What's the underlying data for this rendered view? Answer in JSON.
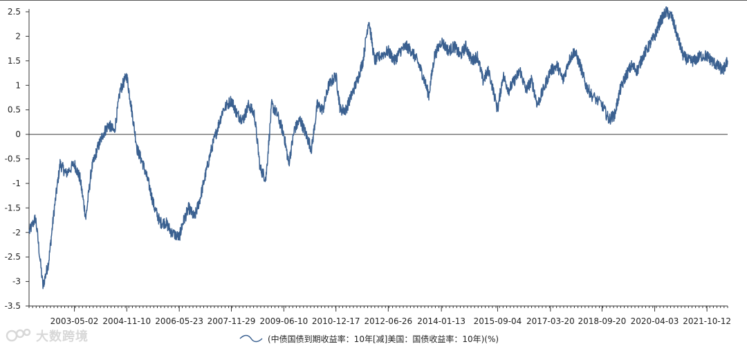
{
  "chart_data": {
    "type": "line",
    "title": "",
    "xlabel": "",
    "ylabel": "",
    "ylim": [
      -3.5,
      2.6
    ],
    "y_ticks": [
      "2.5",
      "2",
      "1.5",
      "1",
      "0.5",
      "0",
      "-0.5",
      "-1",
      "-1.5",
      "-2",
      "-2.5",
      "-3",
      "-3.5"
    ],
    "y_tick_values": [
      2.5,
      2,
      1.5,
      1,
      0.5,
      0,
      -0.5,
      -1,
      -1.5,
      -2,
      -2.5,
      -3,
      -3.5
    ],
    "x_range": [
      "2002-01-04",
      "2022-05-20"
    ],
    "x_tick_labels": [
      "2003-05-02",
      "2004-11-10",
      "2006-05-23",
      "2007-11-29",
      "2009-06-10",
      "2010-12-17",
      "2012-06-26",
      "2014-01-13",
      "2015-09-04",
      "2017-03-20",
      "2018-09-20",
      "2020-04-03",
      "2021-10-12"
    ],
    "zero_line": true,
    "grid": false,
    "legend_position": "bottom-center",
    "series": [
      {
        "name": "(中债国债到期收益率：10年[减]美国：国债收益率：10年)(%)",
        "color": "#3a6090",
        "x": [
          "2002-01-04",
          "2002-03-15",
          "2002-06-01",
          "2002-08-01",
          "2002-10-01",
          "2002-12-01",
          "2003-02-01",
          "2003-05-02",
          "2003-07-01",
          "2003-09-01",
          "2003-11-01",
          "2004-01-01",
          "2004-03-01",
          "2004-05-01",
          "2004-07-01",
          "2004-09-01",
          "2004-11-10",
          "2005-01-01",
          "2005-03-01",
          "2005-05-01",
          "2005-07-01",
          "2005-09-01",
          "2005-11-01",
          "2006-01-01",
          "2006-03-01",
          "2006-05-23",
          "2006-07-01",
          "2006-09-01",
          "2006-11-01",
          "2007-01-01",
          "2007-03-01",
          "2007-05-01",
          "2007-07-01",
          "2007-09-01",
          "2007-11-29",
          "2008-02-01",
          "2008-04-01",
          "2008-06-01",
          "2008-08-01",
          "2008-10-01",
          "2008-12-01",
          "2009-02-01",
          "2009-04-01",
          "2009-06-10",
          "2009-08-01",
          "2009-10-01",
          "2009-12-01",
          "2010-02-01",
          "2010-04-01",
          "2010-06-01",
          "2010-08-01",
          "2010-10-01",
          "2010-12-17",
          "2011-02-01",
          "2011-04-01",
          "2011-06-01",
          "2011-08-01",
          "2011-10-01",
          "2011-12-01",
          "2012-02-01",
          "2012-04-01",
          "2012-06-26",
          "2012-09-01",
          "2012-11-01",
          "2013-01-01",
          "2013-03-01",
          "2013-05-01",
          "2013-07-01",
          "2013-09-01",
          "2013-11-01",
          "2014-01-13",
          "2014-04-01",
          "2014-06-01",
          "2014-08-01",
          "2014-10-01",
          "2014-12-01",
          "2015-02-01",
          "2015-04-01",
          "2015-06-01",
          "2015-09-04",
          "2015-11-01",
          "2016-01-01",
          "2016-03-01",
          "2016-05-01",
          "2016-07-01",
          "2016-09-01",
          "2016-11-01",
          "2017-01-01",
          "2017-03-20",
          "2017-06-01",
          "2017-08-01",
          "2017-10-01",
          "2017-12-01",
          "2018-02-01",
          "2018-04-01",
          "2018-06-01",
          "2018-09-20",
          "2018-12-01",
          "2019-02-01",
          "2019-04-01",
          "2019-06-01",
          "2019-08-01",
          "2019-10-01",
          "2019-12-01",
          "2020-02-01",
          "2020-04-03",
          "2020-06-01",
          "2020-08-01",
          "2020-10-01",
          "2020-12-01",
          "2021-02-01",
          "2021-04-01",
          "2021-06-01",
          "2021-08-01",
          "2021-10-12",
          "2021-12-01",
          "2022-02-01",
          "2022-04-01",
          "2022-05-20"
        ],
        "values": [
          -2.0,
          -1.7,
          -3.1,
          -2.6,
          -1.5,
          -0.6,
          -0.8,
          -0.6,
          -0.9,
          -1.7,
          -0.7,
          -0.3,
          0.0,
          0.2,
          0.05,
          0.9,
          1.2,
          0.5,
          -0.3,
          -0.6,
          -1.0,
          -1.5,
          -1.8,
          -1.8,
          -2.0,
          -2.1,
          -1.8,
          -1.5,
          -1.7,
          -1.3,
          -0.8,
          -0.3,
          0.1,
          0.5,
          0.7,
          0.4,
          0.3,
          0.6,
          0.4,
          -0.7,
          -0.9,
          0.6,
          0.4,
          0.0,
          -0.6,
          0.1,
          0.3,
          0.0,
          -0.3,
          0.6,
          0.5,
          1.0,
          1.2,
          0.5,
          0.5,
          0.8,
          1.1,
          1.5,
          2.35,
          1.5,
          1.6,
          1.7,
          1.5,
          1.7,
          1.8,
          1.7,
          1.5,
          1.2,
          0.8,
          1.6,
          1.9,
          1.7,
          1.8,
          1.6,
          1.8,
          1.5,
          1.6,
          1.1,
          1.3,
          0.5,
          1.2,
          0.9,
          1.1,
          1.3,
          0.9,
          1.1,
          0.6,
          0.9,
          1.3,
          1.4,
          1.1,
          1.5,
          1.7,
          1.4,
          1.0,
          0.8,
          0.6,
          0.3,
          0.4,
          0.9,
          1.2,
          1.4,
          1.3,
          1.6,
          1.8,
          2.0,
          2.3,
          2.5,
          2.4,
          2.0,
          1.6,
          1.5,
          1.5,
          1.6,
          1.6,
          1.5,
          1.4,
          1.3,
          1.5
        ]
      }
    ]
  },
  "watermark": {
    "text": "大数跨境"
  }
}
